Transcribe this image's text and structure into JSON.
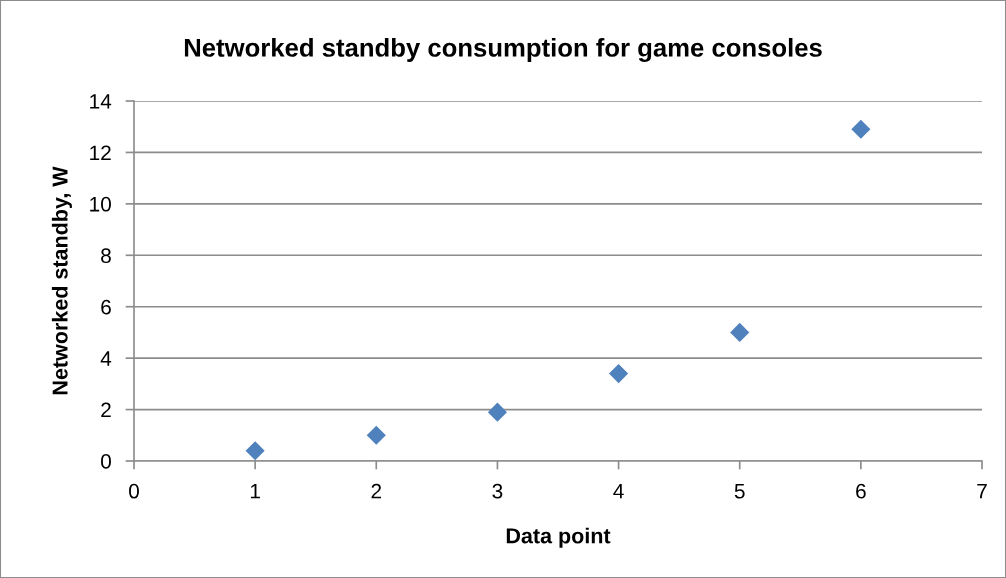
{
  "chart_data": {
    "type": "scatter",
    "title": "Networked standby consumption for game consoles",
    "xlabel": "Data point",
    "ylabel": "Networked standby, W",
    "x": [
      1,
      2,
      3,
      4,
      5,
      6
    ],
    "series": [
      {
        "color": "#4f81bd",
        "values": [
          0.4,
          1.0,
          1.9,
          3.4,
          5.0,
          12.9
        ]
      }
    ],
    "xlim": [
      0,
      7
    ],
    "xticks": [
      0,
      1,
      2,
      3,
      4,
      5,
      6,
      7
    ],
    "ylim": [
      0,
      14
    ],
    "yticks": [
      0,
      2,
      4,
      6,
      8,
      10,
      12,
      14
    ],
    "grid": "y",
    "marker": "diamond"
  }
}
